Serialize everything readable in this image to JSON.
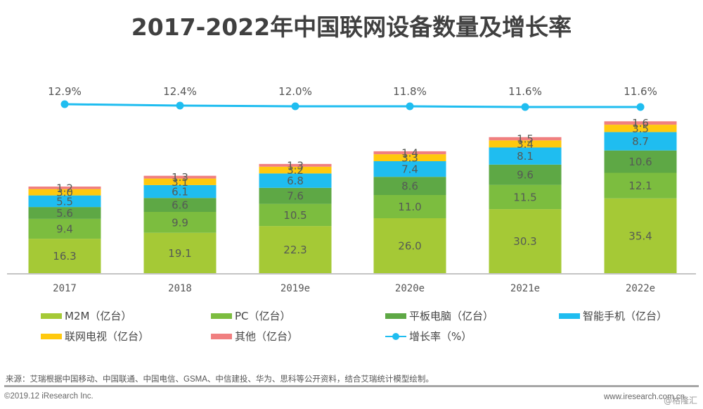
{
  "title": "2017-2022年中国联网设备数量及增长率",
  "chart_data": {
    "type": "bar",
    "stacked": true,
    "title": "2017-2022年中国联网设备数量及增长率",
    "xlabel": "",
    "ylabel": "",
    "categories": [
      "2017",
      "2018",
      "2019e",
      "2020e",
      "2021e",
      "2022e"
    ],
    "series": [
      {
        "name": "M2M（亿台）",
        "color": "#a5c936",
        "values": [
          16.3,
          19.1,
          22.3,
          26.0,
          30.3,
          35.4
        ]
      },
      {
        "name": "PC（亿台）",
        "color": "#7cbd3f",
        "values": [
          9.4,
          9.9,
          10.5,
          11.0,
          11.5,
          12.1
        ]
      },
      {
        "name": "平板电脑（亿台）",
        "color": "#5ea845",
        "values": [
          5.6,
          6.6,
          7.6,
          8.6,
          9.6,
          10.6
        ]
      },
      {
        "name": "智能手机（亿台）",
        "color": "#1fbdf0",
        "values": [
          5.5,
          6.1,
          6.8,
          7.4,
          8.1,
          8.7
        ]
      },
      {
        "name": "联网电视（亿台）",
        "color": "#ffc90e",
        "values": [
          3.0,
          3.1,
          3.2,
          3.3,
          3.4,
          3.5
        ]
      },
      {
        "name": "其他（亿台）",
        "color": "#f07f80",
        "values": [
          1.2,
          1.3,
          1.3,
          1.4,
          1.5,
          1.6
        ]
      }
    ],
    "line_series": {
      "name": "增长率（%）",
      "color": "#1fbdf0",
      "values": [
        12.9,
        12.4,
        12.0,
        11.8,
        11.6,
        11.6
      ],
      "labels": [
        "12.9%",
        "12.4%",
        "12.0%",
        "11.8%",
        "11.6%",
        "11.6%"
      ]
    },
    "grid": false,
    "legend_position": "bottom"
  },
  "legend": {
    "items": [
      {
        "label": "M2M（亿台）",
        "color": "#a5c936",
        "kind": "bar"
      },
      {
        "label": "PC（亿台）",
        "color": "#7cbd3f",
        "kind": "bar"
      },
      {
        "label": "平板电脑（亿台）",
        "color": "#5ea845",
        "kind": "bar"
      },
      {
        "label": "智能手机（亿台）",
        "color": "#1fbdf0",
        "kind": "bar"
      },
      {
        "label": "联网电视（亿台）",
        "color": "#ffc90e",
        "kind": "bar"
      },
      {
        "label": "其他（亿台）",
        "color": "#f07f80",
        "kind": "bar"
      },
      {
        "label": "增长率（%）",
        "color": "#1fbdf0",
        "kind": "line"
      }
    ]
  },
  "footer": {
    "source": "来源：艾瑞根据中国移动、中国联通、中国电信、GSMA、中信建投、华为、思科等公开资料，结合艾瑞统计模型绘制。",
    "copyright": "©2019.12 iResearch Inc.",
    "website": "www.iresearch.com.cn",
    "watermark": "@格隆汇"
  }
}
